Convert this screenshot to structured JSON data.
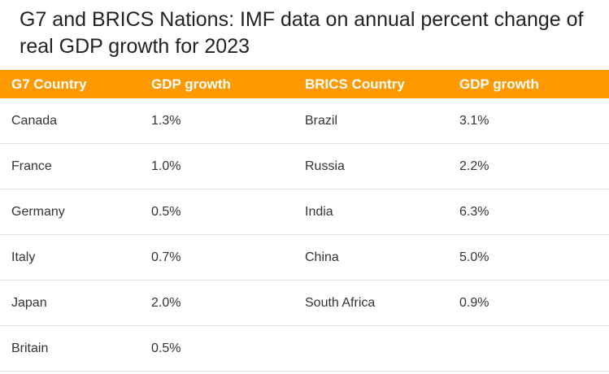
{
  "chart_data": {
    "type": "table",
    "title": "G7 and BRICS Nations: IMF data on annual percent change of real GDP growth for 2023",
    "columns": [
      "G7 Country",
      "GDP growth",
      "BRICS Country",
      "GDP growth"
    ],
    "rows": [
      [
        "Canada",
        "1.3%",
        "Brazil",
        "3.1%"
      ],
      [
        "France",
        "1.0%",
        "Russia",
        "2.2%"
      ],
      [
        "Germany",
        "0.5%",
        "India",
        "6.3%"
      ],
      [
        "Italy",
        "0.7%",
        "China",
        "5.0%"
      ],
      [
        "Japan",
        "2.0%",
        "South Africa",
        "0.9%"
      ],
      [
        "Britain",
        "0.5%",
        "",
        ""
      ]
    ],
    "header_color": "#ff9900"
  }
}
